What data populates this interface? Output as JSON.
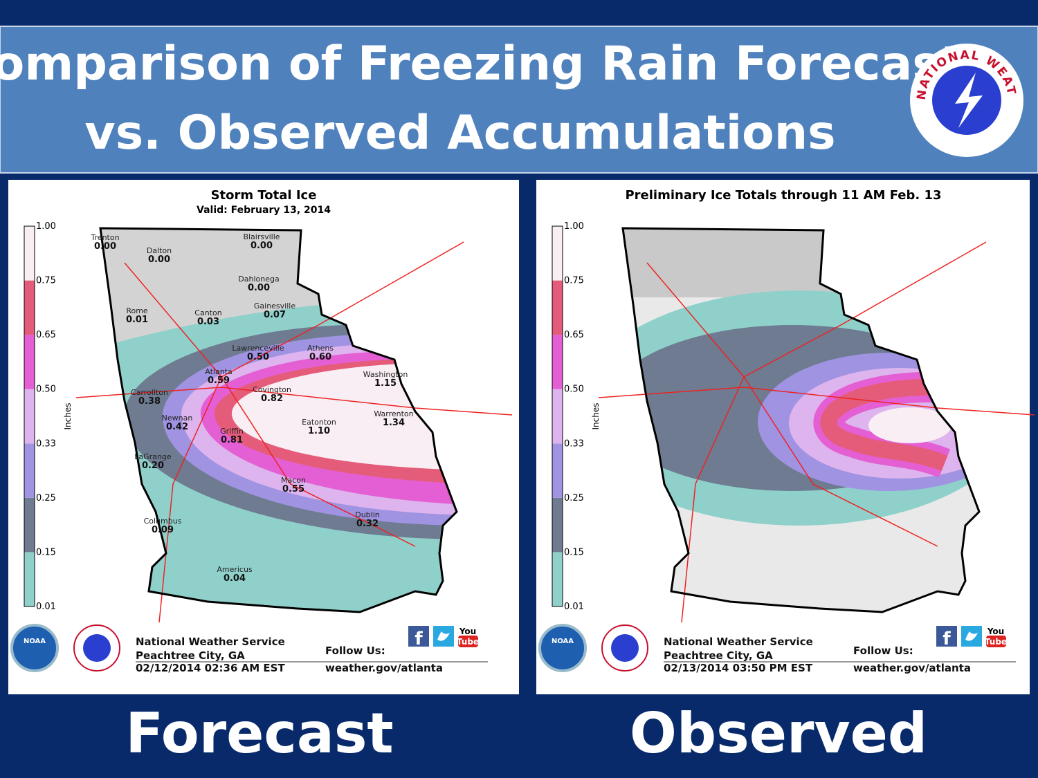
{
  "header": {
    "title": [
      "Comparison of Freezing Rain Forecast",
      "vs. Observed Accumulations"
    ],
    "logo": "NATIONAL WEATHER SERVICE"
  },
  "panels": [
    {
      "title": "Storm Total Ice",
      "subtitle": "Valid: February 13, 2014",
      "legend": {
        "label": "Inches",
        "ticks": [
          "0.01",
          "0.15",
          "0.25",
          "0.33",
          "0.50",
          "0.65",
          "0.75",
          "1.00"
        ],
        "colors": [
          "#8fd0cb",
          "#6e7b91",
          "#a093e2",
          "#ddb4ee",
          "#e45fd3",
          "#e55c7a",
          "#f9eef3"
        ]
      },
      "cities": [
        {
          "name": "Trenton",
          "value": "0.00"
        },
        {
          "name": "Dalton",
          "value": "0.00"
        },
        {
          "name": "Blairsville",
          "value": "0.00"
        },
        {
          "name": "Dahlonega",
          "value": "0.00"
        },
        {
          "name": "Rome",
          "value": "0.01"
        },
        {
          "name": "Canton",
          "value": "0.03"
        },
        {
          "name": "Gainesville",
          "value": "0.07"
        },
        {
          "name": "Lawrenceville",
          "value": "0.50"
        },
        {
          "name": "Athens",
          "value": "0.60"
        },
        {
          "name": "Atlanta",
          "value": "0.59"
        },
        {
          "name": "Washington",
          "value": "1.15"
        },
        {
          "name": "Carrollton",
          "value": "0.38"
        },
        {
          "name": "Covington",
          "value": "0.82"
        },
        {
          "name": "Warrenton",
          "value": "1.34"
        },
        {
          "name": "Newnan",
          "value": "0.42"
        },
        {
          "name": "Eatonton",
          "value": "1.10"
        },
        {
          "name": "Griffin",
          "value": "0.81"
        },
        {
          "name": "LaGrange",
          "value": "0.20"
        },
        {
          "name": "Macon",
          "value": "0.55"
        },
        {
          "name": "Dublin",
          "value": "0.32"
        },
        {
          "name": "Columbus",
          "value": "0.09"
        },
        {
          "name": "Americus",
          "value": "0.04"
        }
      ],
      "footer": {
        "office": "National Weather Service",
        "location": "Peachtree City, GA",
        "time": "02/12/2014 02:36 AM EST",
        "follow": "Follow Us:",
        "url": "weather.gov/atlanta",
        "facebook": "f",
        "youtube": [
          "You",
          "Tube"
        ],
        "noaa": "NOAA"
      },
      "caption": "Forecast"
    },
    {
      "title": "Preliminary Ice Totals through 11 AM Feb. 13",
      "legend": {
        "label": "Inches",
        "ticks": [
          "0.01",
          "0.15",
          "0.25",
          "0.33",
          "0.50",
          "0.65",
          "0.75",
          "1.00"
        ],
        "colors": [
          "#8fd0cb",
          "#6e7b91",
          "#a093e2",
          "#ddb4ee",
          "#e45fd3",
          "#e55c7a",
          "#f9eef3"
        ]
      },
      "footer": {
        "office": "National Weather Service",
        "location": "Peachtree City, GA",
        "time": "02/13/2014 03:50 PM EST",
        "follow": "Follow Us:",
        "url": "weather.gov/atlanta",
        "facebook": "f",
        "youtube": [
          "You",
          "Tube"
        ],
        "noaa": "NOAA"
      },
      "caption": "Observed"
    }
  ]
}
